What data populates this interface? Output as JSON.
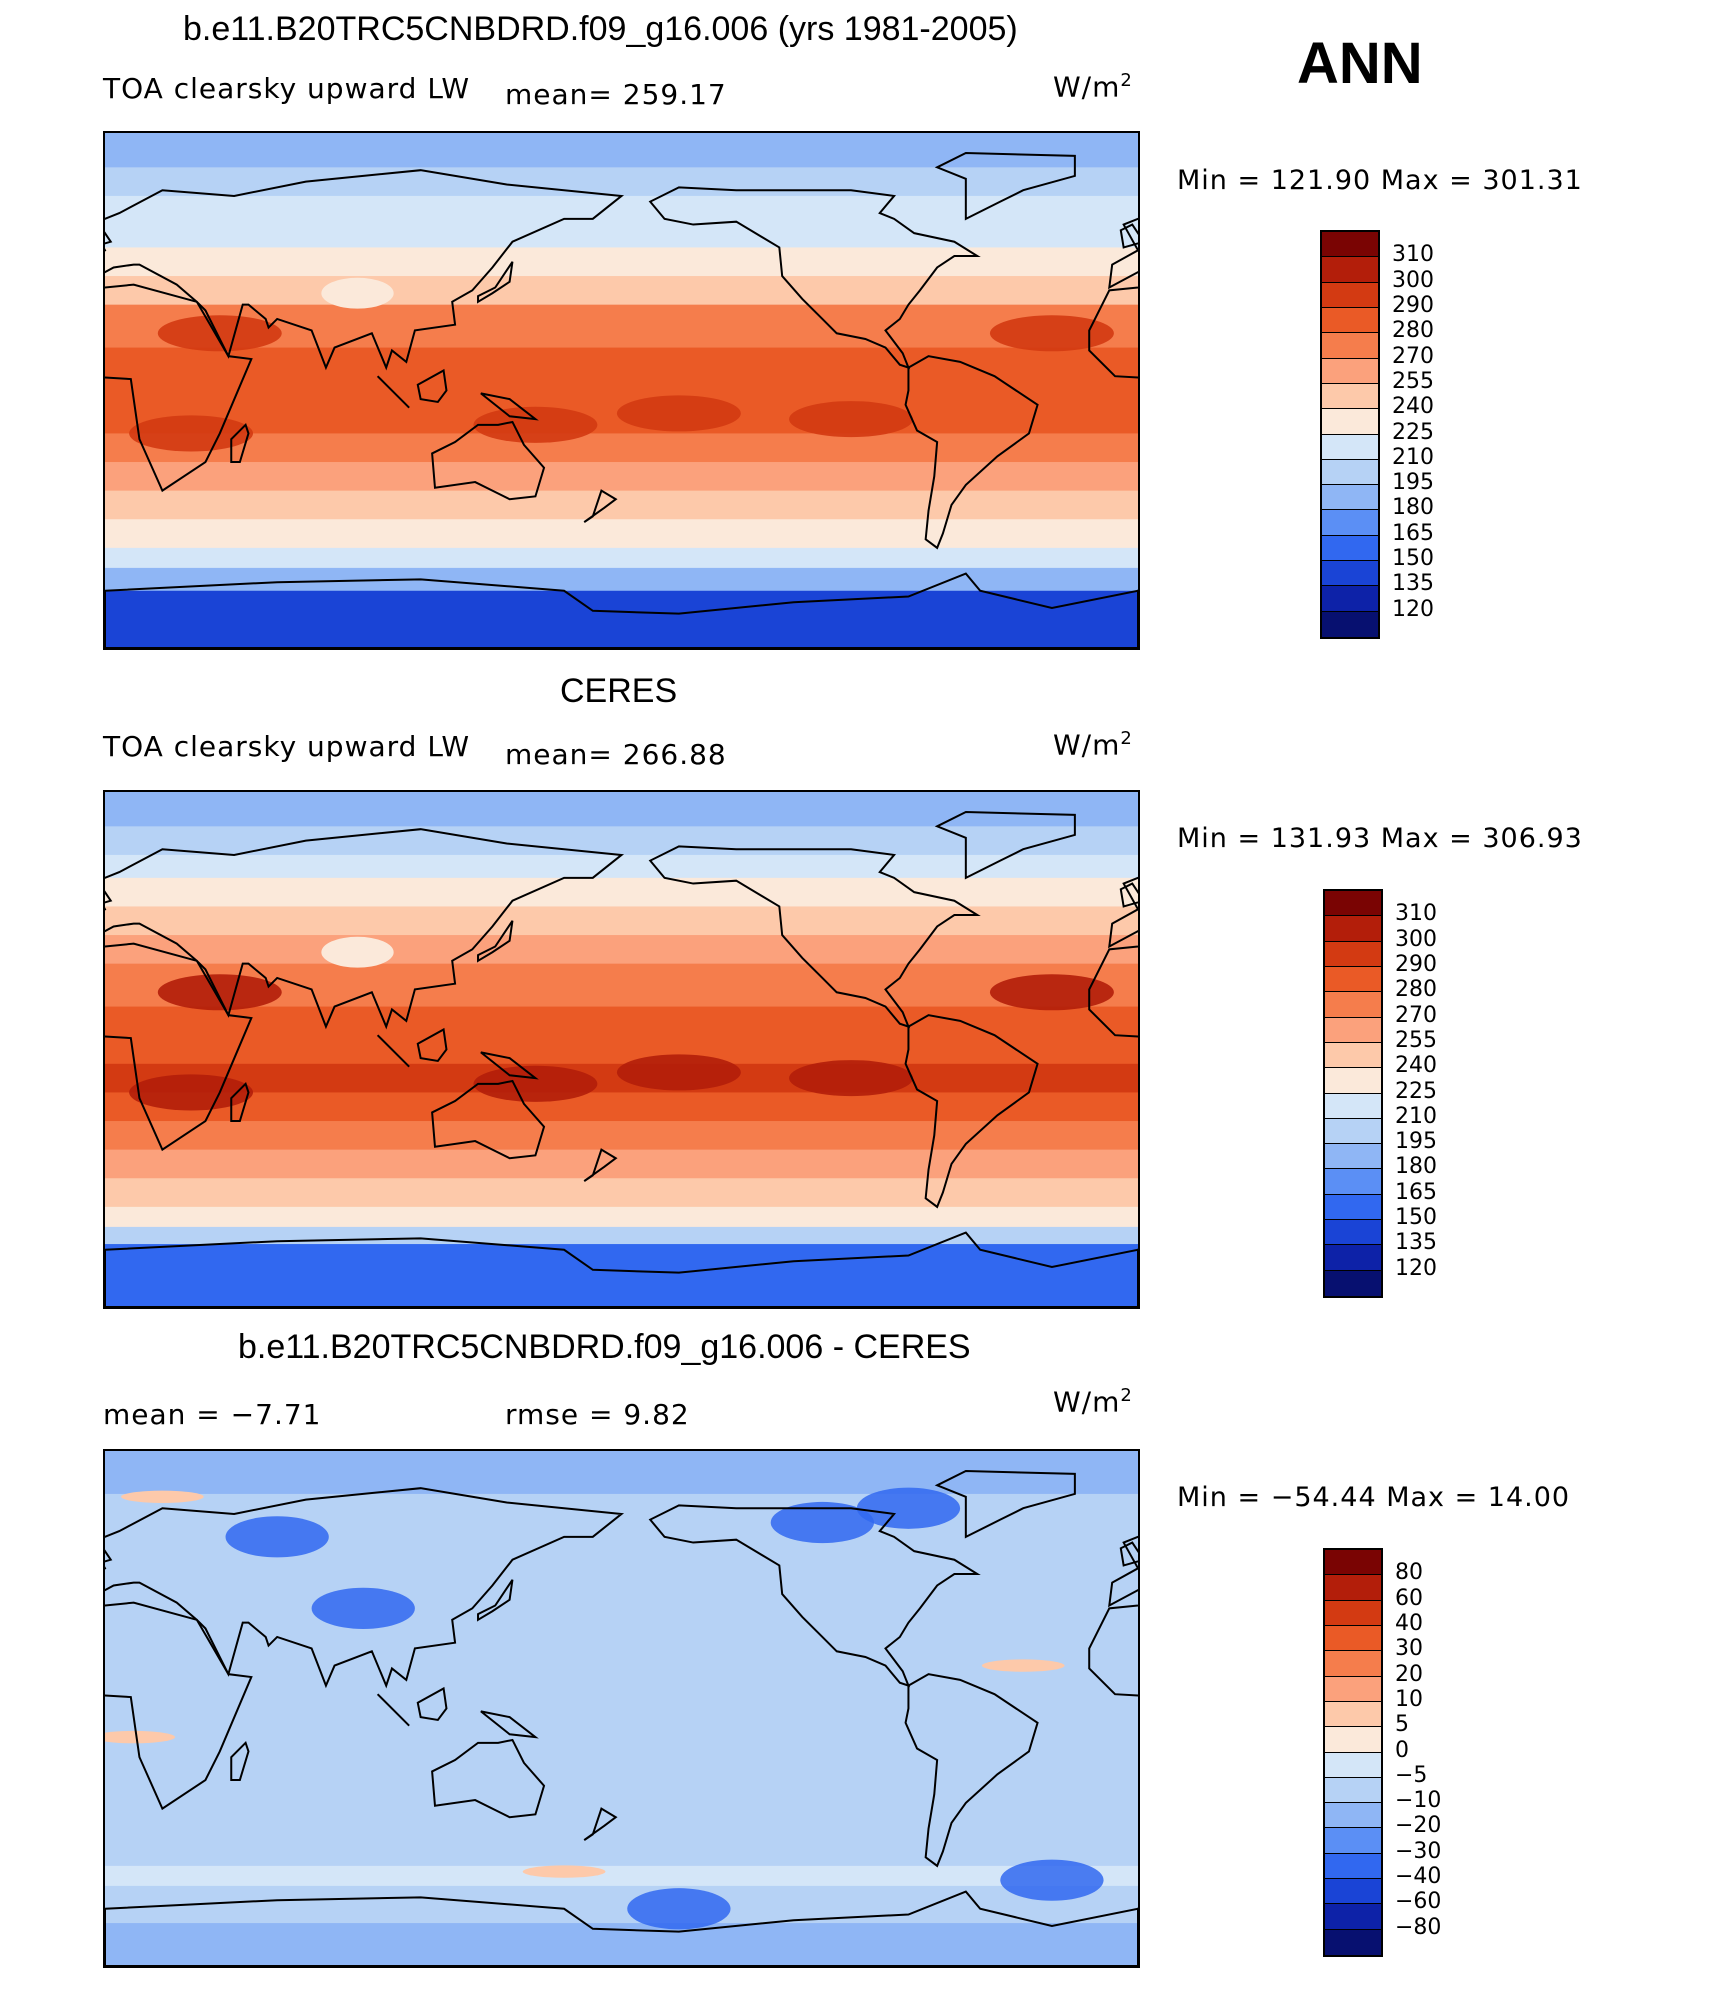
{
  "season": "ANN",
  "panels": [
    {
      "title": "b.e11.B20TRC5CNBDRD.f09_g16.006 (yrs 1981-2005)",
      "left_label": "TOA clearsky upward LW",
      "mean_label": "mean= 259.17",
      "units": "W/m",
      "units_sup": "2",
      "minmax": "Min  =  121.90  Max  =  301.31"
    },
    {
      "title": "CERES",
      "left_label": "TOA clearsky upward LW",
      "mean_label": "mean= 266.88",
      "units": "W/m",
      "units_sup": "2",
      "minmax": "Min  =  131.93  Max  =  306.93"
    },
    {
      "title": "b.e11.B20TRC5CNBDRD.f09_g16.006 - CERES",
      "left_label": "mean  =    −7.71",
      "mean_label": "rmse  =     9.82",
      "units": "W/m",
      "units_sup": "2",
      "minmax": "Min  =  −54.44  Max  =    14.00"
    }
  ],
  "chart_data": [
    {
      "type": "heatmap",
      "title": "b.e11.B20TRC5CNBDRD.f09_g16.006 (yrs 1981-2005)",
      "variable": "TOA clearsky upward LW",
      "units": "W/m2",
      "mean": 259.17,
      "min": 121.9,
      "max": 301.31,
      "colorbar_levels": [
        "310",
        "300",
        "290",
        "280",
        "270",
        "255",
        "240",
        "225",
        "210",
        "195",
        "180",
        "165",
        "150",
        "135",
        "120"
      ],
      "colors": [
        "#7a0403",
        "#b31e0a",
        "#d33a12",
        "#ea5a26",
        "#f57d4c",
        "#fba17c",
        "#fdc9aa",
        "#fbe9da",
        "#d4e6f8",
        "#b6d2f5",
        "#8fb6f5",
        "#5b8ff5",
        "#3168f0",
        "#1a44d6",
        "#0d22a8",
        "#071070"
      ]
    },
    {
      "type": "heatmap",
      "title": "CERES",
      "variable": "TOA clearsky upward LW",
      "units": "W/m2",
      "mean": 266.88,
      "min": 131.93,
      "max": 306.93,
      "colorbar_levels": [
        "310",
        "300",
        "290",
        "280",
        "270",
        "255",
        "240",
        "225",
        "210",
        "195",
        "180",
        "165",
        "150",
        "135",
        "120"
      ],
      "colors": [
        "#7a0403",
        "#b31e0a",
        "#d33a12",
        "#ea5a26",
        "#f57d4c",
        "#fba17c",
        "#fdc9aa",
        "#fbe9da",
        "#d4e6f8",
        "#b6d2f5",
        "#8fb6f5",
        "#5b8ff5",
        "#3168f0",
        "#1a44d6",
        "#0d22a8",
        "#071070"
      ]
    },
    {
      "type": "heatmap",
      "title": "b.e11.B20TRC5CNBDRD.f09_g16.006 - CERES",
      "units": "W/m2",
      "mean": -7.71,
      "rmse": 9.82,
      "min": -54.44,
      "max": 14.0,
      "colorbar_levels": [
        "80",
        "60",
        "40",
        "30",
        "20",
        "10",
        "5",
        "0",
        "−5",
        "−10",
        "−20",
        "−30",
        "−40",
        "−60",
        "−80"
      ],
      "colors": [
        "#7a0403",
        "#b31e0a",
        "#d33a12",
        "#ea5a26",
        "#f57d4c",
        "#fba17c",
        "#fdc9aa",
        "#fbe9da",
        "#d4e6f8",
        "#b6d2f5",
        "#8fb6f5",
        "#5b8ff5",
        "#3168f0",
        "#1a44d6",
        "#0d22a8",
        "#071070"
      ]
    }
  ]
}
